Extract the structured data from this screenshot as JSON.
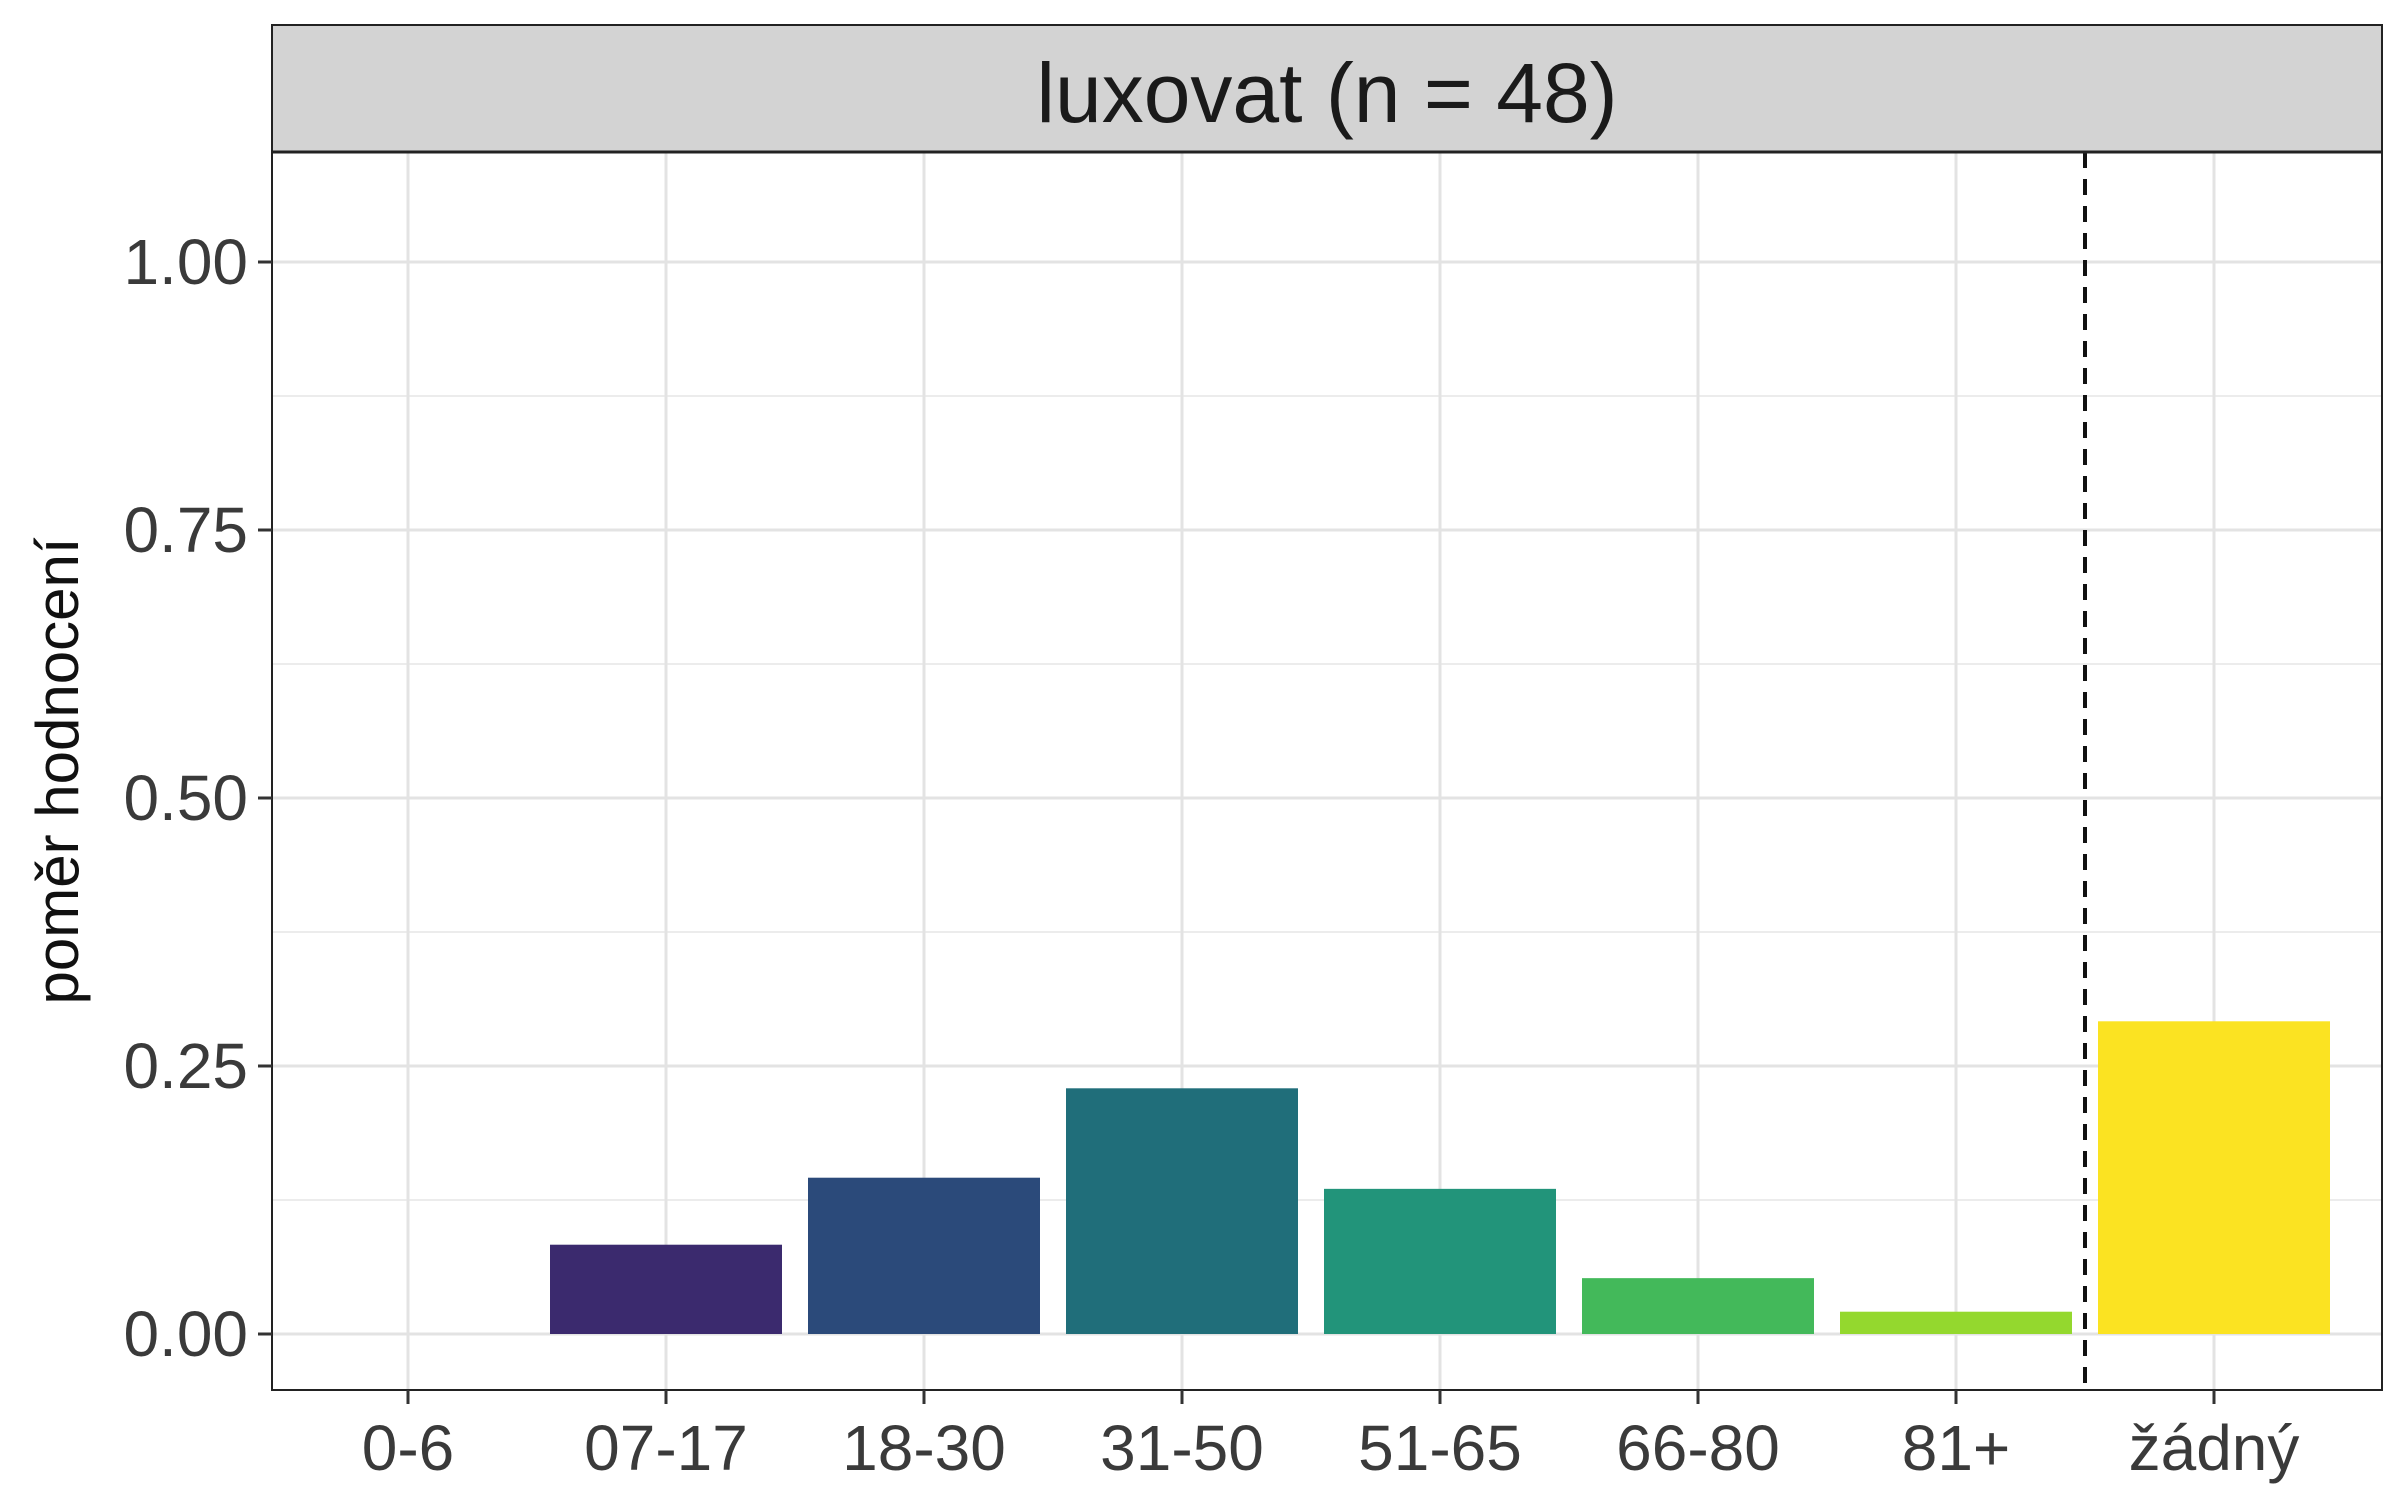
{
  "chart_data": {
    "type": "bar",
    "facet_title": "luxovat (n = 48)",
    "xlabel": "",
    "ylabel": "poměr hodnocení",
    "categories": [
      "0-6",
      "07-17",
      "18-30",
      "31-50",
      "51-65",
      "66-80",
      "81+",
      "žádný"
    ],
    "values": [
      0.0,
      0.0833,
      0.1458,
      0.2292,
      0.1354,
      0.0521,
      0.0208,
      0.2917
    ],
    "colors": [
      "#440154",
      "#3b2a6e",
      "#2b4a7a",
      "#206e7a",
      "#22947a",
      "#43b95a",
      "#94d82e",
      "#fbe322"
    ],
    "ylim": [
      -0.05,
      1.1
    ],
    "yticks": [
      0.0,
      0.25,
      0.5,
      0.75,
      1.0
    ],
    "ytick_labels": [
      "0.00",
      "0.25",
      "0.50",
      "0.75",
      "1.00"
    ],
    "reference_line": {
      "between": [
        "81+",
        "žádný"
      ],
      "style": "dashed"
    },
    "grid": true,
    "legend": "none"
  }
}
